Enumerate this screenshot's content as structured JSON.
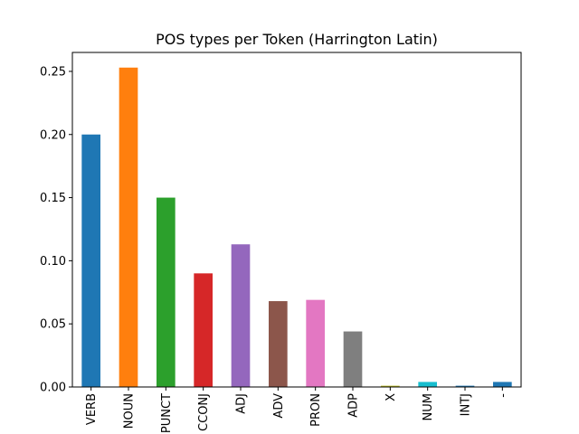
{
  "chart_data": {
    "type": "bar",
    "title": "POS types per Token (Harrington Latin)",
    "xlabel": "",
    "ylabel": "",
    "categories": [
      "VERB",
      "NOUN",
      "PUNCT",
      "CCONJ",
      "ADJ",
      "ADV",
      "PRON",
      "ADP",
      "X",
      "NUM",
      "INTJ",
      "-"
    ],
    "values": [
      0.2,
      0.253,
      0.15,
      0.09,
      0.113,
      0.068,
      0.069,
      0.044,
      0.001,
      0.004,
      0.001,
      0.004
    ],
    "colors": [
      "#1f77b4",
      "#ff7f0e",
      "#2ca02c",
      "#d62728",
      "#9467bd",
      "#8c564b",
      "#e377c2",
      "#7f7f7f",
      "#bcbd22",
      "#17becf",
      "#1f77b4",
      "#1f77b4"
    ],
    "ylim": [
      0,
      0.265
    ],
    "yticks": [
      "0.00",
      "0.05",
      "0.10",
      "0.15",
      "0.20",
      "0.25"
    ],
    "grid": false,
    "legend": "none"
  }
}
